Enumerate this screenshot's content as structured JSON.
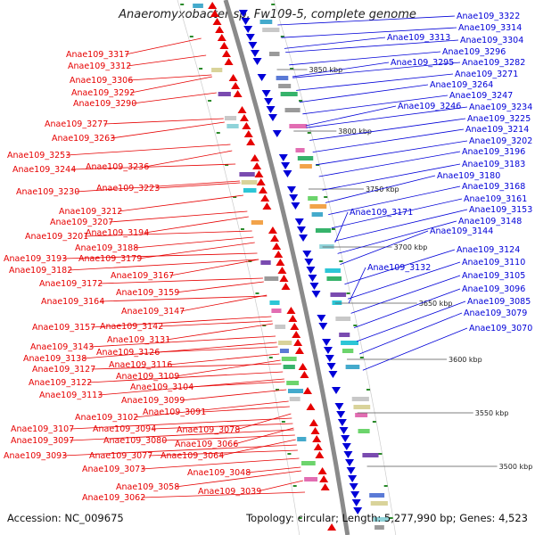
{
  "title": "Anaeromyxobacter sp. Fw109-5, complete genome",
  "accession": "Accession: NC_009675",
  "summary": "Topology: circular; Length: 5,277,990 bp; Genes: 4,523",
  "colors": {
    "forward": "#e60000",
    "reverse": "#0000d8",
    "backbone": "#808080",
    "ticks": "#2a8a2a"
  },
  "kbp_ticks": [
    "3850 kbp",
    "3800 kbp",
    "3750 kbp",
    "3700 kbp",
    "3650 kbp",
    "3600 kbp",
    "3550 kbp",
    "3500 kbp"
  ],
  "left_labels": [
    "Anae109_3317",
    "Anae109_3312",
    "Anae109_3306",
    "Anae109_3292",
    "Anae109_3290",
    "Anae109_3277",
    "Anae109_3263",
    "Anae109_3253",
    "Anae109_3244",
    "Anae109_3236",
    "Anae109_3230",
    "Anae109_3223",
    "Anae109_3212",
    "Anae109_3207",
    "Anae109_3201",
    "Anae109_3194",
    "Anae109_3188",
    "Anae109_3193",
    "Anae109_3179",
    "Anae109_3182",
    "Anae109_3172",
    "Anae109_3167",
    "Anae109_3159",
    "Anae109_3164",
    "Anae109_3147",
    "Anae109_3157",
    "Anae109_3142",
    "Anae109_3131",
    "Anae109_3143",
    "Anae109_3126",
    "Anae109_3138",
    "Anae109_3116",
    "Anae109_3127",
    "Anae109_3109",
    "Anae109_3122",
    "Anae109_3104",
    "Anae109_3113",
    "Anae109_3099",
    "Anae109_3091",
    "Anae109_3102",
    "Anae109_3107",
    "Anae109_3094",
    "Anae109_3078",
    "Anae109_3097",
    "Anae109_3080",
    "Anae109_3066",
    "Anae109_3093",
    "Anae109_3077",
    "Anae109_3064",
    "Anae109_3073",
    "Anae109_3048",
    "Anae109_3058",
    "Anae109_3039",
    "Anae109_3062"
  ],
  "right_labels": [
    "Anae109_3322",
    "Anae109_3314",
    "Anae109_3313",
    "Anae109_3304",
    "Anae109_3296",
    "Anae109_3295",
    "Anae109_3282",
    "Anae109_3271",
    "Anae109_3264",
    "Anae109_3247",
    "Anae109_3246",
    "Anae109_3234",
    "Anae109_3225",
    "Anae109_3214",
    "Anae109_3202",
    "Anae109_3196",
    "Anae109_3183",
    "Anae109_3180",
    "Anae109_3168",
    "Anae109_3161",
    "Anae109_3171",
    "Anae109_3153",
    "Anae109_3148",
    "Anae109_3144",
    "Anae109_3124",
    "Anae109_3132",
    "Anae109_3110",
    "Anae109_3105",
    "Anae109_3096",
    "Anae109_3085",
    "Anae109_3079",
    "Anae109_3070"
  ]
}
